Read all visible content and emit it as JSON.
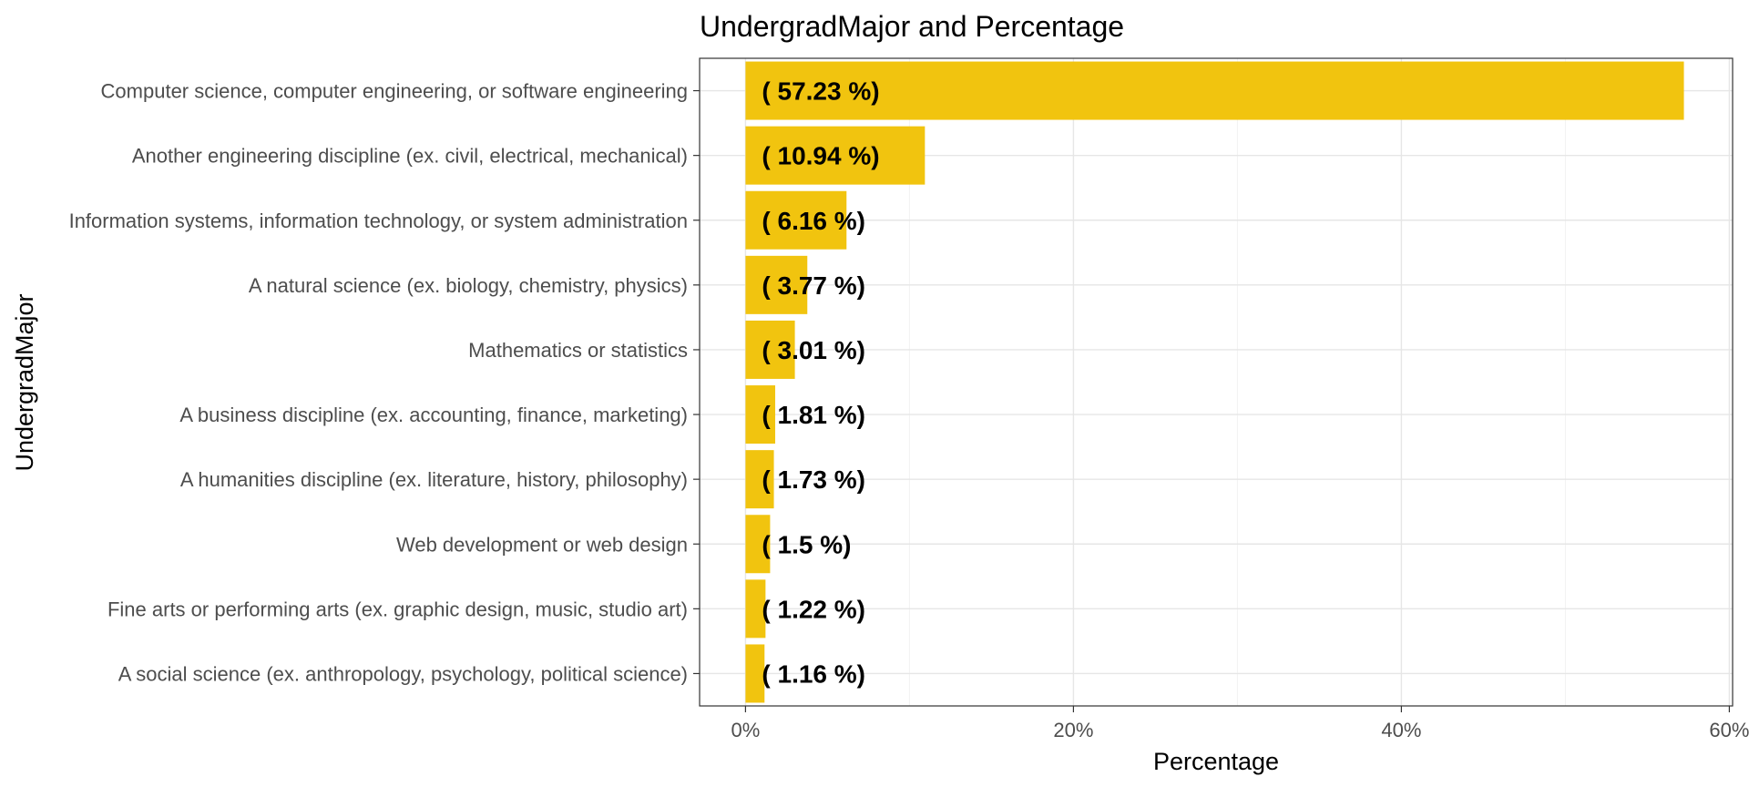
{
  "chart_data": {
    "type": "bar",
    "orientation": "horizontal",
    "title": "UndergradMajor and Percentage",
    "xlabel": "Percentage",
    "ylabel": "UndergradMajor",
    "xlim": [
      -2.8,
      60.2
    ],
    "x_ticks": [
      0,
      20,
      40,
      60
    ],
    "x_tick_labels": [
      "0%",
      "20%",
      "40%",
      "60%"
    ],
    "grid": true,
    "legend": "none",
    "bar_color": "#F1C40F",
    "categories": [
      "Computer science, computer engineering, or software engineering",
      "Another engineering discipline (ex. civil, electrical, mechanical)",
      "Information systems, information technology, or system administration",
      "A natural science (ex. biology, chemistry, physics)",
      "Mathematics or statistics",
      "A business discipline (ex. accounting, finance, marketing)",
      "A humanities discipline (ex. literature, history, philosophy)",
      "Web development or web design",
      "Fine arts or performing arts (ex. graphic design, music, studio art)",
      "A social science (ex. anthropology, psychology, political science)"
    ],
    "values": [
      57.23,
      10.94,
      6.16,
      3.77,
      3.01,
      1.81,
      1.73,
      1.5,
      1.22,
      1.16
    ],
    "data_labels": [
      "( 57.23 %)",
      "( 10.94 %)",
      "( 6.16 %)",
      "( 3.77 %)",
      "( 3.01 %)",
      "( 1.81 %)",
      "( 1.73 %)",
      "( 1.5 %)",
      "( 1.22 %)",
      "( 1.16 %)"
    ]
  }
}
